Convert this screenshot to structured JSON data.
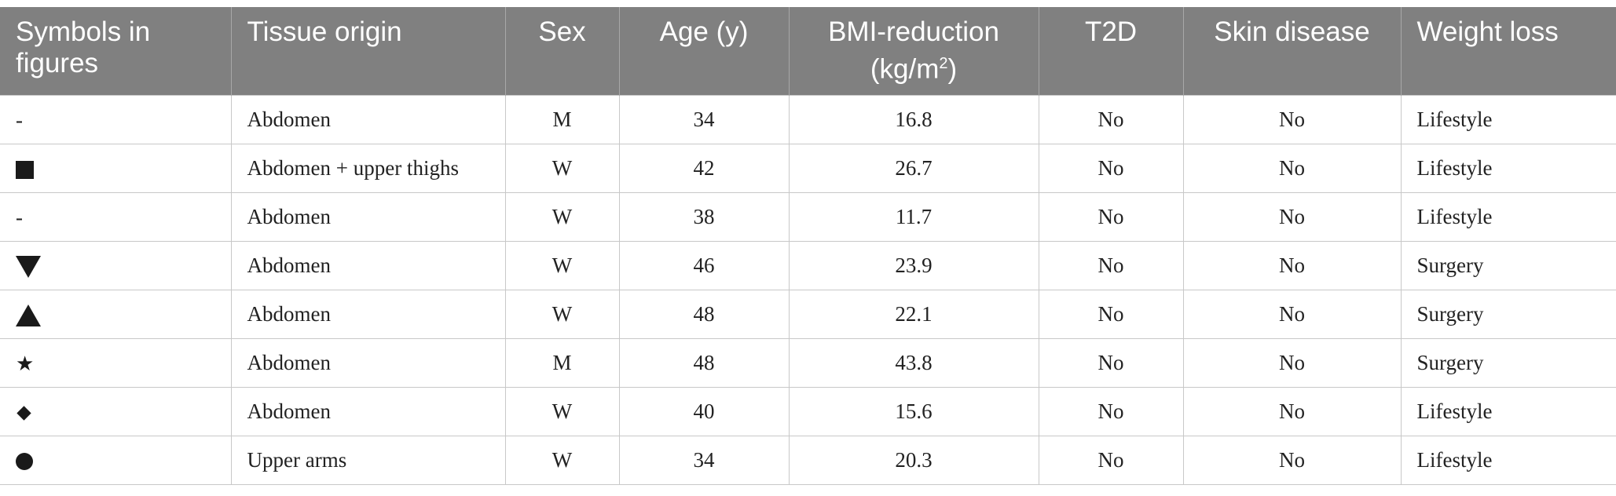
{
  "headers": [
    {
      "key": "symbol",
      "label": "Symbols in figures",
      "align": "left"
    },
    {
      "key": "tissue",
      "label": "Tissue origin",
      "align": "left"
    },
    {
      "key": "sex",
      "label": "Sex",
      "align": "center"
    },
    {
      "key": "age",
      "label": "Age (y)",
      "align": "center"
    },
    {
      "key": "bmi",
      "label": "BMI-reduction",
      "unit_prefix": "(kg/m",
      "unit_sup": "2",
      "unit_suffix": ")",
      "align": "center"
    },
    {
      "key": "t2d",
      "label": "T2D",
      "align": "center"
    },
    {
      "key": "skin",
      "label": "Skin disease",
      "align": "center"
    },
    {
      "key": "weight",
      "label": "Weight loss",
      "align": "left"
    }
  ],
  "rows": [
    {
      "symbol": "-",
      "symbol_icon": "dash",
      "tissue": "Abdomen",
      "sex": "M",
      "age": "34",
      "bmi": "16.8",
      "t2d": "No",
      "skin": "No",
      "weight": "Lifestyle"
    },
    {
      "symbol": "",
      "symbol_icon": "filled-square",
      "tissue": "Abdomen + upper thighs",
      "sex": "W",
      "age": "42",
      "bmi": "26.7",
      "t2d": "No",
      "skin": "No",
      "weight": "Lifestyle"
    },
    {
      "symbol": "-",
      "symbol_icon": "dash",
      "tissue": "Abdomen",
      "sex": "W",
      "age": "38",
      "bmi": "11.7",
      "t2d": "No",
      "skin": "No",
      "weight": "Lifestyle"
    },
    {
      "symbol": "",
      "symbol_icon": "filled-triangle-down",
      "tissue": "Abdomen",
      "sex": "W",
      "age": "46",
      "bmi": "23.9",
      "t2d": "No",
      "skin": "No",
      "weight": "Surgery"
    },
    {
      "symbol": "",
      "symbol_icon": "filled-triangle-up",
      "tissue": "Abdomen",
      "sex": "W",
      "age": "48",
      "bmi": "22.1",
      "t2d": "No",
      "skin": "No",
      "weight": "Surgery"
    },
    {
      "symbol": "★",
      "symbol_icon": "filled-star",
      "tissue": "Abdomen",
      "sex": "M",
      "age": "48",
      "bmi": "43.8",
      "t2d": "No",
      "skin": "No",
      "weight": "Surgery"
    },
    {
      "symbol": "",
      "symbol_icon": "filled-diamond",
      "tissue": "Abdomen",
      "sex": "W",
      "age": "40",
      "bmi": "15.6",
      "t2d": "No",
      "skin": "No",
      "weight": "Lifestyle"
    },
    {
      "symbol": "",
      "symbol_icon": "filled-circle",
      "tissue": "Upper arms",
      "sex": "W",
      "age": "34",
      "bmi": "20.3",
      "t2d": "No",
      "skin": "No",
      "weight": "Lifestyle"
    }
  ],
  "colors": {
    "header_bg": "#808080",
    "header_text": "#ffffff",
    "border": "#c8c8c8",
    "symbol": "#1a1a1a"
  }
}
